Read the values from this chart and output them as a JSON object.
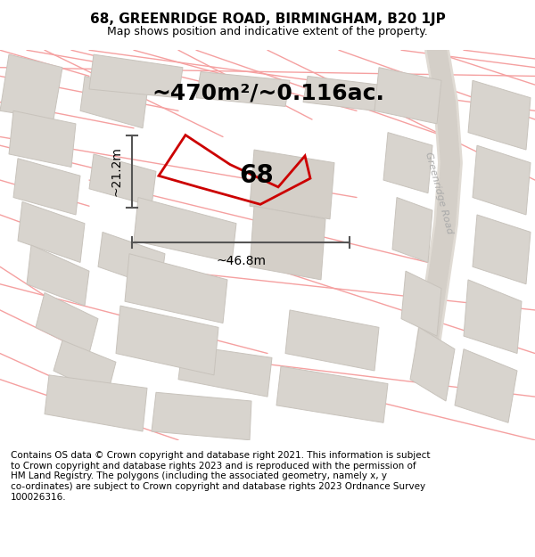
{
  "title_line1": "68, GREENRIDGE ROAD, BIRMINGHAM, B20 1JP",
  "title_line2": "Map shows position and indicative extent of the property.",
  "area_text": "~470m²/~0.116ac.",
  "property_number": "68",
  "dim_width": "~46.8m",
  "dim_height": "~21.2m",
  "road_label": "Greenridge Road",
  "footer_text_lines": [
    "Contains OS data © Crown copyright and database right 2021. This information is subject",
    "to Crown copyright and database rights 2023 and is reproduced with the permission of",
    "HM Land Registry. The polygons (including the associated geometry, namely x, y",
    "co-ordinates) are subject to Crown copyright and database rights 2023 Ordnance Survey",
    "100026316."
  ],
  "bg_color": "#ebe8e2",
  "plot_line_color": "#cc0000",
  "dim_line_color": "#555555",
  "street_line_color": "#f5a0a0",
  "block_fill": "#d8d4ce",
  "road_label_color": "#aaaaaa",
  "title_fontsize": 11,
  "subtitle_fontsize": 9,
  "area_fontsize": 18,
  "number_fontsize": 20,
  "dim_fontsize": 10,
  "footer_fontsize": 7.5
}
